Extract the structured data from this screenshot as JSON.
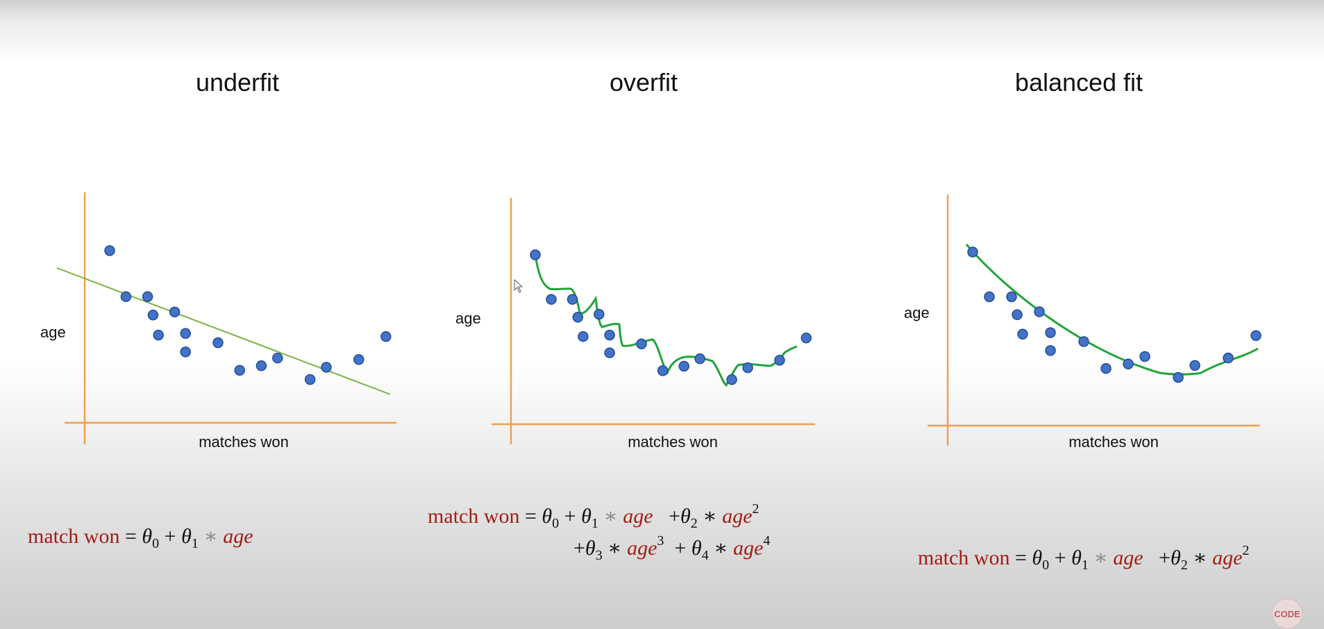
{
  "titles": [
    "underfit",
    "overfit",
    "balanced fit"
  ],
  "axis": {
    "y_label": "age",
    "x_label": "matches won"
  },
  "colors": {
    "axis": "#f0a04b",
    "line_underfit": "#7cb342",
    "curve": "#22a33a",
    "point_fill": "#4472c4",
    "point_stroke": "#1f4e9a",
    "equation_red": "#a31d14"
  },
  "equations": {
    "lhs": "match won",
    "eq": "=",
    "theta": "θ",
    "plus": "+",
    "times": "∗",
    "var": "age",
    "sub0": "0",
    "sub1": "1",
    "sub2": "2",
    "sub3": "3",
    "sub4": "4",
    "pow2": "2",
    "pow3": "3",
    "pow4": "4"
  },
  "logo": {
    "text": "CODE"
  },
  "chart_data": [
    {
      "type": "scatter",
      "title": "underfit",
      "xlabel": "matches won",
      "ylabel": "age",
      "fit": "linear",
      "points": [
        [
          1,
          10
        ],
        [
          2.5,
          7
        ],
        [
          4.5,
          7
        ],
        [
          7,
          6
        ],
        [
          5,
          5.8
        ],
        [
          5.5,
          4.5
        ],
        [
          8,
          4.6
        ],
        [
          8,
          3.4
        ],
        [
          11,
          4
        ],
        [
          15,
          2.5
        ],
        [
          13,
          2.2
        ],
        [
          16.5,
          3
        ],
        [
          21,
          2.4
        ],
        [
          19.5,
          1.6
        ],
        [
          24,
          2.9
        ],
        [
          26.5,
          4.4
        ]
      ]
    },
    {
      "type": "scatter",
      "title": "overfit",
      "xlabel": "matches won",
      "ylabel": "age",
      "fit": "interpolating",
      "points": [
        [
          1,
          10
        ],
        [
          2.5,
          7
        ],
        [
          4.5,
          7
        ],
        [
          7,
          6
        ],
        [
          5,
          5.8
        ],
        [
          5.5,
          4.5
        ],
        [
          8,
          4.6
        ],
        [
          8,
          3.4
        ],
        [
          11,
          4
        ],
        [
          15,
          2.5
        ],
        [
          13,
          2.2
        ],
        [
          16.5,
          3
        ],
        [
          21,
          2.4
        ],
        [
          19.5,
          1.6
        ],
        [
          24,
          2.9
        ],
        [
          26.5,
          4.4
        ]
      ]
    },
    {
      "type": "scatter",
      "title": "balanced fit",
      "xlabel": "matches won",
      "ylabel": "age",
      "fit": "quadratic",
      "points": [
        [
          1,
          10
        ],
        [
          2.5,
          7
        ],
        [
          4.5,
          7
        ],
        [
          7,
          6
        ],
        [
          5,
          5.8
        ],
        [
          5.5,
          4.5
        ],
        [
          8,
          4.6
        ],
        [
          8,
          3.4
        ],
        [
          11,
          4
        ],
        [
          15,
          2.5
        ],
        [
          13,
          2.2
        ],
        [
          16.5,
          3
        ],
        [
          21,
          2.4
        ],
        [
          19.5,
          1.6
        ],
        [
          24,
          2.9
        ],
        [
          26.5,
          4.4
        ]
      ]
    }
  ]
}
